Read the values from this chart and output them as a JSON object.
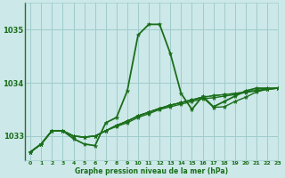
{
  "title": "Graphe pression niveau de la mer (hPa)",
  "bg_color": "#cce8e8",
  "grid_color": "#a0cccc",
  "line_color": "#1a6e1a",
  "xlim": [
    -0.5,
    23
  ],
  "ylim": [
    1032.55,
    1035.5
  ],
  "yticks": [
    1033,
    1034,
    1035
  ],
  "xticks": [
    0,
    1,
    2,
    3,
    4,
    5,
    6,
    7,
    8,
    9,
    10,
    11,
    12,
    13,
    14,
    15,
    16,
    17,
    18,
    19,
    20,
    21,
    22,
    23
  ],
  "series": [
    {
      "y": [
        1032.7,
        1032.85,
        1033.1,
        1033.1,
        1032.95,
        1032.85,
        1032.82,
        1033.25,
        1033.35,
        1033.85,
        1034.9,
        1035.1,
        1035.1,
        1034.55,
        1033.8,
        1033.5,
        1033.75,
        1033.55,
        1033.65,
        1033.75,
        1033.85,
        1033.9,
        1033.9,
        1033.9
      ],
      "lw": 1.3,
      "ls": "-",
      "marker": true
    },
    {
      "y": [
        1032.7,
        1032.85,
        1033.1,
        1033.1,
        1033.0,
        1032.98,
        1033.0,
        1033.1,
        1033.18,
        1033.25,
        1033.35,
        1033.42,
        1033.5,
        1033.55,
        1033.6,
        1033.65,
        1033.7,
        1033.72,
        1033.75,
        1033.78,
        1033.82,
        1033.85,
        1033.88,
        1033.9
      ],
      "lw": 1.0,
      "ls": "-",
      "marker": true
    },
    {
      "y": [
        1032.7,
        1032.85,
        1033.1,
        1033.1,
        1033.0,
        1032.98,
        1033.0,
        1033.1,
        1033.2,
        1033.28,
        1033.38,
        1033.45,
        1033.52,
        1033.58,
        1033.63,
        1033.68,
        1033.73,
        1033.76,
        1033.78,
        1033.8,
        1033.83,
        1033.86,
        1033.88,
        1033.9
      ],
      "lw": 1.0,
      "ls": "-",
      "marker": true
    },
    {
      "y": [
        1032.7,
        1032.85,
        1033.1,
        1033.1,
        1033.0,
        1032.98,
        1033.0,
        1033.1,
        1033.2,
        1033.28,
        1033.38,
        1033.45,
        1033.52,
        1033.58,
        1033.63,
        1033.68,
        1033.73,
        1033.54,
        1033.55,
        1033.65,
        1033.73,
        1033.83,
        1033.88,
        1033.9
      ],
      "lw": 1.0,
      "ls": "-",
      "marker": true
    },
    {
      "y": [
        1032.7,
        1032.85,
        1033.1,
        1033.1,
        1033.0,
        1032.98,
        1033.0,
        1033.1,
        1033.2,
        1033.28,
        1033.38,
        1033.45,
        1033.52,
        1033.58,
        1033.63,
        1033.68,
        1033.73,
        1033.76,
        1033.78,
        1033.8,
        1033.83,
        1033.86,
        1033.88,
        1033.9
      ],
      "lw": 1.0,
      "ls": "--",
      "marker": false
    }
  ]
}
